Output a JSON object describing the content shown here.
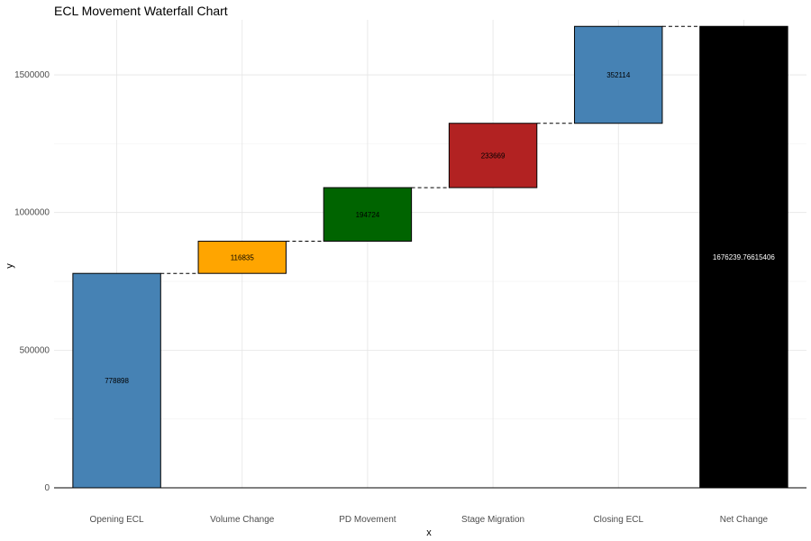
{
  "chart_data": {
    "type": "bar",
    "subtype": "waterfall",
    "title": "ECL Movement Waterfall Chart",
    "xlabel": "x",
    "ylabel": "y",
    "ylim": [
      0,
      1700000
    ],
    "yticks": [
      0,
      500000,
      1000000,
      1500000
    ],
    "ytick_labels": [
      "0",
      "500000",
      "1000000",
      "1500000"
    ],
    "categories": [
      "Opening ECL",
      "Volume Change",
      "PD Movement",
      "Stage Migration",
      "Closing ECL",
      "Net Change"
    ],
    "bars": [
      {
        "category": "Opening ECL",
        "start": 0,
        "end": 778898,
        "label": "778898",
        "fill": "#4682B4",
        "label_color": "#000000"
      },
      {
        "category": "Volume Change",
        "start": 778898,
        "end": 895733,
        "label": "116835",
        "fill": "#FFA500",
        "label_color": "#000000"
      },
      {
        "category": "PD Movement",
        "start": 895733,
        "end": 1090457,
        "label": "194724",
        "fill": "#006400",
        "label_color": "#000000"
      },
      {
        "category": "Stage Migration",
        "start": 1090457,
        "end": 1324126,
        "label": "233669",
        "fill": "#B22222",
        "label_color": "#000000"
      },
      {
        "category": "Closing ECL",
        "start": 1324126,
        "end": 1676240,
        "label": "352114",
        "fill": "#4682B4",
        "label_color": "#000000"
      },
      {
        "category": "Net Change",
        "start": 0,
        "end": 1676239.76615406,
        "label": "1676239.76615406",
        "fill": "#000000",
        "label_color": "#ffffff"
      }
    ],
    "connectors": "dashed",
    "grid": true
  }
}
